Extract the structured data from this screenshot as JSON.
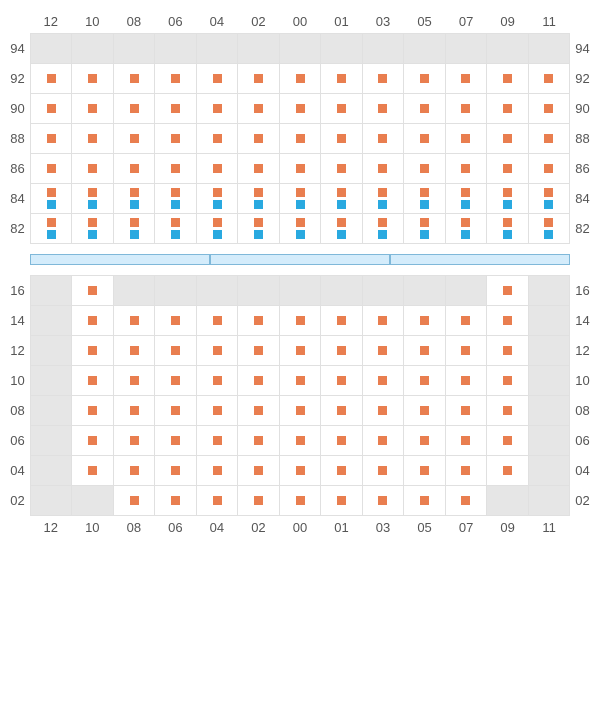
{
  "colors": {
    "orange": "#e97e4f",
    "blue": "#29a9e0",
    "gray": "#e6e6e6",
    "white": "#ffffff",
    "border": "#e0e0e0",
    "divider_fill": "#d4ecfb",
    "divider_border": "#7fb8d9",
    "text": "#555555"
  },
  "marker_size": 9,
  "font_size": 13,
  "columns": [
    "12",
    "10",
    "08",
    "06",
    "04",
    "02",
    "00",
    "01",
    "03",
    "05",
    "07",
    "09",
    "11"
  ],
  "top": {
    "row_labels": [
      "94",
      "92",
      "90",
      "88",
      "86",
      "84",
      "82"
    ],
    "label_visible": [
      true,
      false,
      true,
      false,
      true,
      false,
      true,
      false,
      true,
      false,
      true,
      false,
      true
    ],
    "rows": [
      {
        "bg": "gray",
        "markers": [
          [],
          [],
          [],
          [],
          [],
          [],
          [],
          [],
          [],
          [],
          [],
          [],
          []
        ]
      },
      {
        "bg": "white",
        "markers": [
          [
            "o"
          ],
          [
            "o"
          ],
          [
            "o"
          ],
          [
            "o"
          ],
          [
            "o"
          ],
          [
            "o"
          ],
          [
            "o"
          ],
          [
            "o"
          ],
          [
            "o"
          ],
          [
            "o"
          ],
          [
            "o"
          ],
          [
            "o"
          ],
          [
            "o"
          ]
        ]
      },
      {
        "bg": "white",
        "markers": [
          [
            "o"
          ],
          [
            "o"
          ],
          [
            "o"
          ],
          [
            "o"
          ],
          [
            "o"
          ],
          [
            "o"
          ],
          [
            "o"
          ],
          [
            "o"
          ],
          [
            "o"
          ],
          [
            "o"
          ],
          [
            "o"
          ],
          [
            "o"
          ],
          [
            "o"
          ]
        ]
      },
      {
        "bg": "white",
        "markers": [
          [
            "o"
          ],
          [
            "o"
          ],
          [
            "o"
          ],
          [
            "o"
          ],
          [
            "o"
          ],
          [
            "o"
          ],
          [
            "o"
          ],
          [
            "o"
          ],
          [
            "o"
          ],
          [
            "o"
          ],
          [
            "o"
          ],
          [
            "o"
          ],
          [
            "o"
          ]
        ]
      },
      {
        "bg": "white",
        "markers": [
          [
            "o"
          ],
          [
            "o"
          ],
          [
            "o"
          ],
          [
            "o"
          ],
          [
            "o"
          ],
          [
            "o"
          ],
          [
            "o"
          ],
          [
            "o"
          ],
          [
            "o"
          ],
          [
            "o"
          ],
          [
            "o"
          ],
          [
            "o"
          ],
          [
            "o"
          ]
        ]
      },
      {
        "bg": "white",
        "markers": [
          [
            "o",
            "b"
          ],
          [
            "o",
            "b"
          ],
          [
            "o",
            "b"
          ],
          [
            "o",
            "b"
          ],
          [
            "o",
            "b"
          ],
          [
            "o",
            "b"
          ],
          [
            "o",
            "b"
          ],
          [
            "o",
            "b"
          ],
          [
            "o",
            "b"
          ],
          [
            "o",
            "b"
          ],
          [
            "o",
            "b"
          ],
          [
            "o",
            "b"
          ],
          [
            "o",
            "b"
          ]
        ]
      },
      {
        "bg": "white",
        "markers": [
          [
            "o",
            "b"
          ],
          [
            "o",
            "b"
          ],
          [
            "o",
            "b"
          ],
          [
            "o",
            "b"
          ],
          [
            "o",
            "b"
          ],
          [
            "o",
            "b"
          ],
          [
            "o",
            "b"
          ],
          [
            "o",
            "b"
          ],
          [
            "o",
            "b"
          ],
          [
            "o",
            "b"
          ],
          [
            "o",
            "b"
          ],
          [
            "o",
            "b"
          ],
          [
            "o",
            "b"
          ]
        ]
      }
    ]
  },
  "divider": {
    "segments": 3
  },
  "bottom": {
    "row_labels": [
      "16",
      "14",
      "12",
      "10",
      "08",
      "06",
      "04",
      "02"
    ],
    "label_visible": [
      false,
      true,
      false,
      true,
      false,
      true,
      false,
      true,
      false,
      true,
      false,
      true,
      false
    ],
    "rows": [
      {
        "cells": [
          {
            "bg": "gray",
            "m": []
          },
          {
            "bg": "white",
            "m": [
              "o"
            ]
          },
          {
            "bg": "gray",
            "m": []
          },
          {
            "bg": "gray",
            "m": []
          },
          {
            "bg": "gray",
            "m": []
          },
          {
            "bg": "gray",
            "m": []
          },
          {
            "bg": "gray",
            "m": []
          },
          {
            "bg": "gray",
            "m": []
          },
          {
            "bg": "gray",
            "m": []
          },
          {
            "bg": "gray",
            "m": []
          },
          {
            "bg": "gray",
            "m": []
          },
          {
            "bg": "white",
            "m": [
              "o"
            ]
          },
          {
            "bg": "gray",
            "m": []
          }
        ]
      },
      {
        "cells": [
          {
            "bg": "gray",
            "m": []
          },
          {
            "bg": "white",
            "m": [
              "o"
            ]
          },
          {
            "bg": "white",
            "m": [
              "o"
            ]
          },
          {
            "bg": "white",
            "m": [
              "o"
            ]
          },
          {
            "bg": "white",
            "m": [
              "o"
            ]
          },
          {
            "bg": "white",
            "m": [
              "o"
            ]
          },
          {
            "bg": "white",
            "m": [
              "o"
            ]
          },
          {
            "bg": "white",
            "m": [
              "o"
            ]
          },
          {
            "bg": "white",
            "m": [
              "o"
            ]
          },
          {
            "bg": "white",
            "m": [
              "o"
            ]
          },
          {
            "bg": "white",
            "m": [
              "o"
            ]
          },
          {
            "bg": "white",
            "m": [
              "o"
            ]
          },
          {
            "bg": "gray",
            "m": []
          }
        ]
      },
      {
        "cells": [
          {
            "bg": "gray",
            "m": []
          },
          {
            "bg": "white",
            "m": [
              "o"
            ]
          },
          {
            "bg": "white",
            "m": [
              "o"
            ]
          },
          {
            "bg": "white",
            "m": [
              "o"
            ]
          },
          {
            "bg": "white",
            "m": [
              "o"
            ]
          },
          {
            "bg": "white",
            "m": [
              "o"
            ]
          },
          {
            "bg": "white",
            "m": [
              "o"
            ]
          },
          {
            "bg": "white",
            "m": [
              "o"
            ]
          },
          {
            "bg": "white",
            "m": [
              "o"
            ]
          },
          {
            "bg": "white",
            "m": [
              "o"
            ]
          },
          {
            "bg": "white",
            "m": [
              "o"
            ]
          },
          {
            "bg": "white",
            "m": [
              "o"
            ]
          },
          {
            "bg": "gray",
            "m": []
          }
        ]
      },
      {
        "cells": [
          {
            "bg": "gray",
            "m": []
          },
          {
            "bg": "white",
            "m": [
              "o"
            ]
          },
          {
            "bg": "white",
            "m": [
              "o"
            ]
          },
          {
            "bg": "white",
            "m": [
              "o"
            ]
          },
          {
            "bg": "white",
            "m": [
              "o"
            ]
          },
          {
            "bg": "white",
            "m": [
              "o"
            ]
          },
          {
            "bg": "white",
            "m": [
              "o"
            ]
          },
          {
            "bg": "white",
            "m": [
              "o"
            ]
          },
          {
            "bg": "white",
            "m": [
              "o"
            ]
          },
          {
            "bg": "white",
            "m": [
              "o"
            ]
          },
          {
            "bg": "white",
            "m": [
              "o"
            ]
          },
          {
            "bg": "white",
            "m": [
              "o"
            ]
          },
          {
            "bg": "gray",
            "m": []
          }
        ]
      },
      {
        "cells": [
          {
            "bg": "gray",
            "m": []
          },
          {
            "bg": "white",
            "m": [
              "o"
            ]
          },
          {
            "bg": "white",
            "m": [
              "o"
            ]
          },
          {
            "bg": "white",
            "m": [
              "o"
            ]
          },
          {
            "bg": "white",
            "m": [
              "o"
            ]
          },
          {
            "bg": "white",
            "m": [
              "o"
            ]
          },
          {
            "bg": "white",
            "m": [
              "o"
            ]
          },
          {
            "bg": "white",
            "m": [
              "o"
            ]
          },
          {
            "bg": "white",
            "m": [
              "o"
            ]
          },
          {
            "bg": "white",
            "m": [
              "o"
            ]
          },
          {
            "bg": "white",
            "m": [
              "o"
            ]
          },
          {
            "bg": "white",
            "m": [
              "o"
            ]
          },
          {
            "bg": "gray",
            "m": []
          }
        ]
      },
      {
        "cells": [
          {
            "bg": "gray",
            "m": []
          },
          {
            "bg": "white",
            "m": [
              "o"
            ]
          },
          {
            "bg": "white",
            "m": [
              "o"
            ]
          },
          {
            "bg": "white",
            "m": [
              "o"
            ]
          },
          {
            "bg": "white",
            "m": [
              "o"
            ]
          },
          {
            "bg": "white",
            "m": [
              "o"
            ]
          },
          {
            "bg": "white",
            "m": [
              "o"
            ]
          },
          {
            "bg": "white",
            "m": [
              "o"
            ]
          },
          {
            "bg": "white",
            "m": [
              "o"
            ]
          },
          {
            "bg": "white",
            "m": [
              "o"
            ]
          },
          {
            "bg": "white",
            "m": [
              "o"
            ]
          },
          {
            "bg": "white",
            "m": [
              "o"
            ]
          },
          {
            "bg": "gray",
            "m": []
          }
        ]
      },
      {
        "cells": [
          {
            "bg": "gray",
            "m": []
          },
          {
            "bg": "white",
            "m": [
              "o"
            ]
          },
          {
            "bg": "white",
            "m": [
              "o"
            ]
          },
          {
            "bg": "white",
            "m": [
              "o"
            ]
          },
          {
            "bg": "white",
            "m": [
              "o"
            ]
          },
          {
            "bg": "white",
            "m": [
              "o"
            ]
          },
          {
            "bg": "white",
            "m": [
              "o"
            ]
          },
          {
            "bg": "white",
            "m": [
              "o"
            ]
          },
          {
            "bg": "white",
            "m": [
              "o"
            ]
          },
          {
            "bg": "white",
            "m": [
              "o"
            ]
          },
          {
            "bg": "white",
            "m": [
              "o"
            ]
          },
          {
            "bg": "white",
            "m": [
              "o"
            ]
          },
          {
            "bg": "gray",
            "m": []
          }
        ]
      },
      {
        "cells": [
          {
            "bg": "gray",
            "m": []
          },
          {
            "bg": "gray",
            "m": []
          },
          {
            "bg": "white",
            "m": [
              "o"
            ]
          },
          {
            "bg": "white",
            "m": [
              "o"
            ]
          },
          {
            "bg": "white",
            "m": [
              "o"
            ]
          },
          {
            "bg": "white",
            "m": [
              "o"
            ]
          },
          {
            "bg": "white",
            "m": [
              "o"
            ]
          },
          {
            "bg": "white",
            "m": [
              "o"
            ]
          },
          {
            "bg": "white",
            "m": [
              "o"
            ]
          },
          {
            "bg": "white",
            "m": [
              "o"
            ]
          },
          {
            "bg": "white",
            "m": [
              "o"
            ]
          },
          {
            "bg": "gray",
            "m": []
          },
          {
            "bg": "gray",
            "m": []
          }
        ]
      }
    ]
  }
}
